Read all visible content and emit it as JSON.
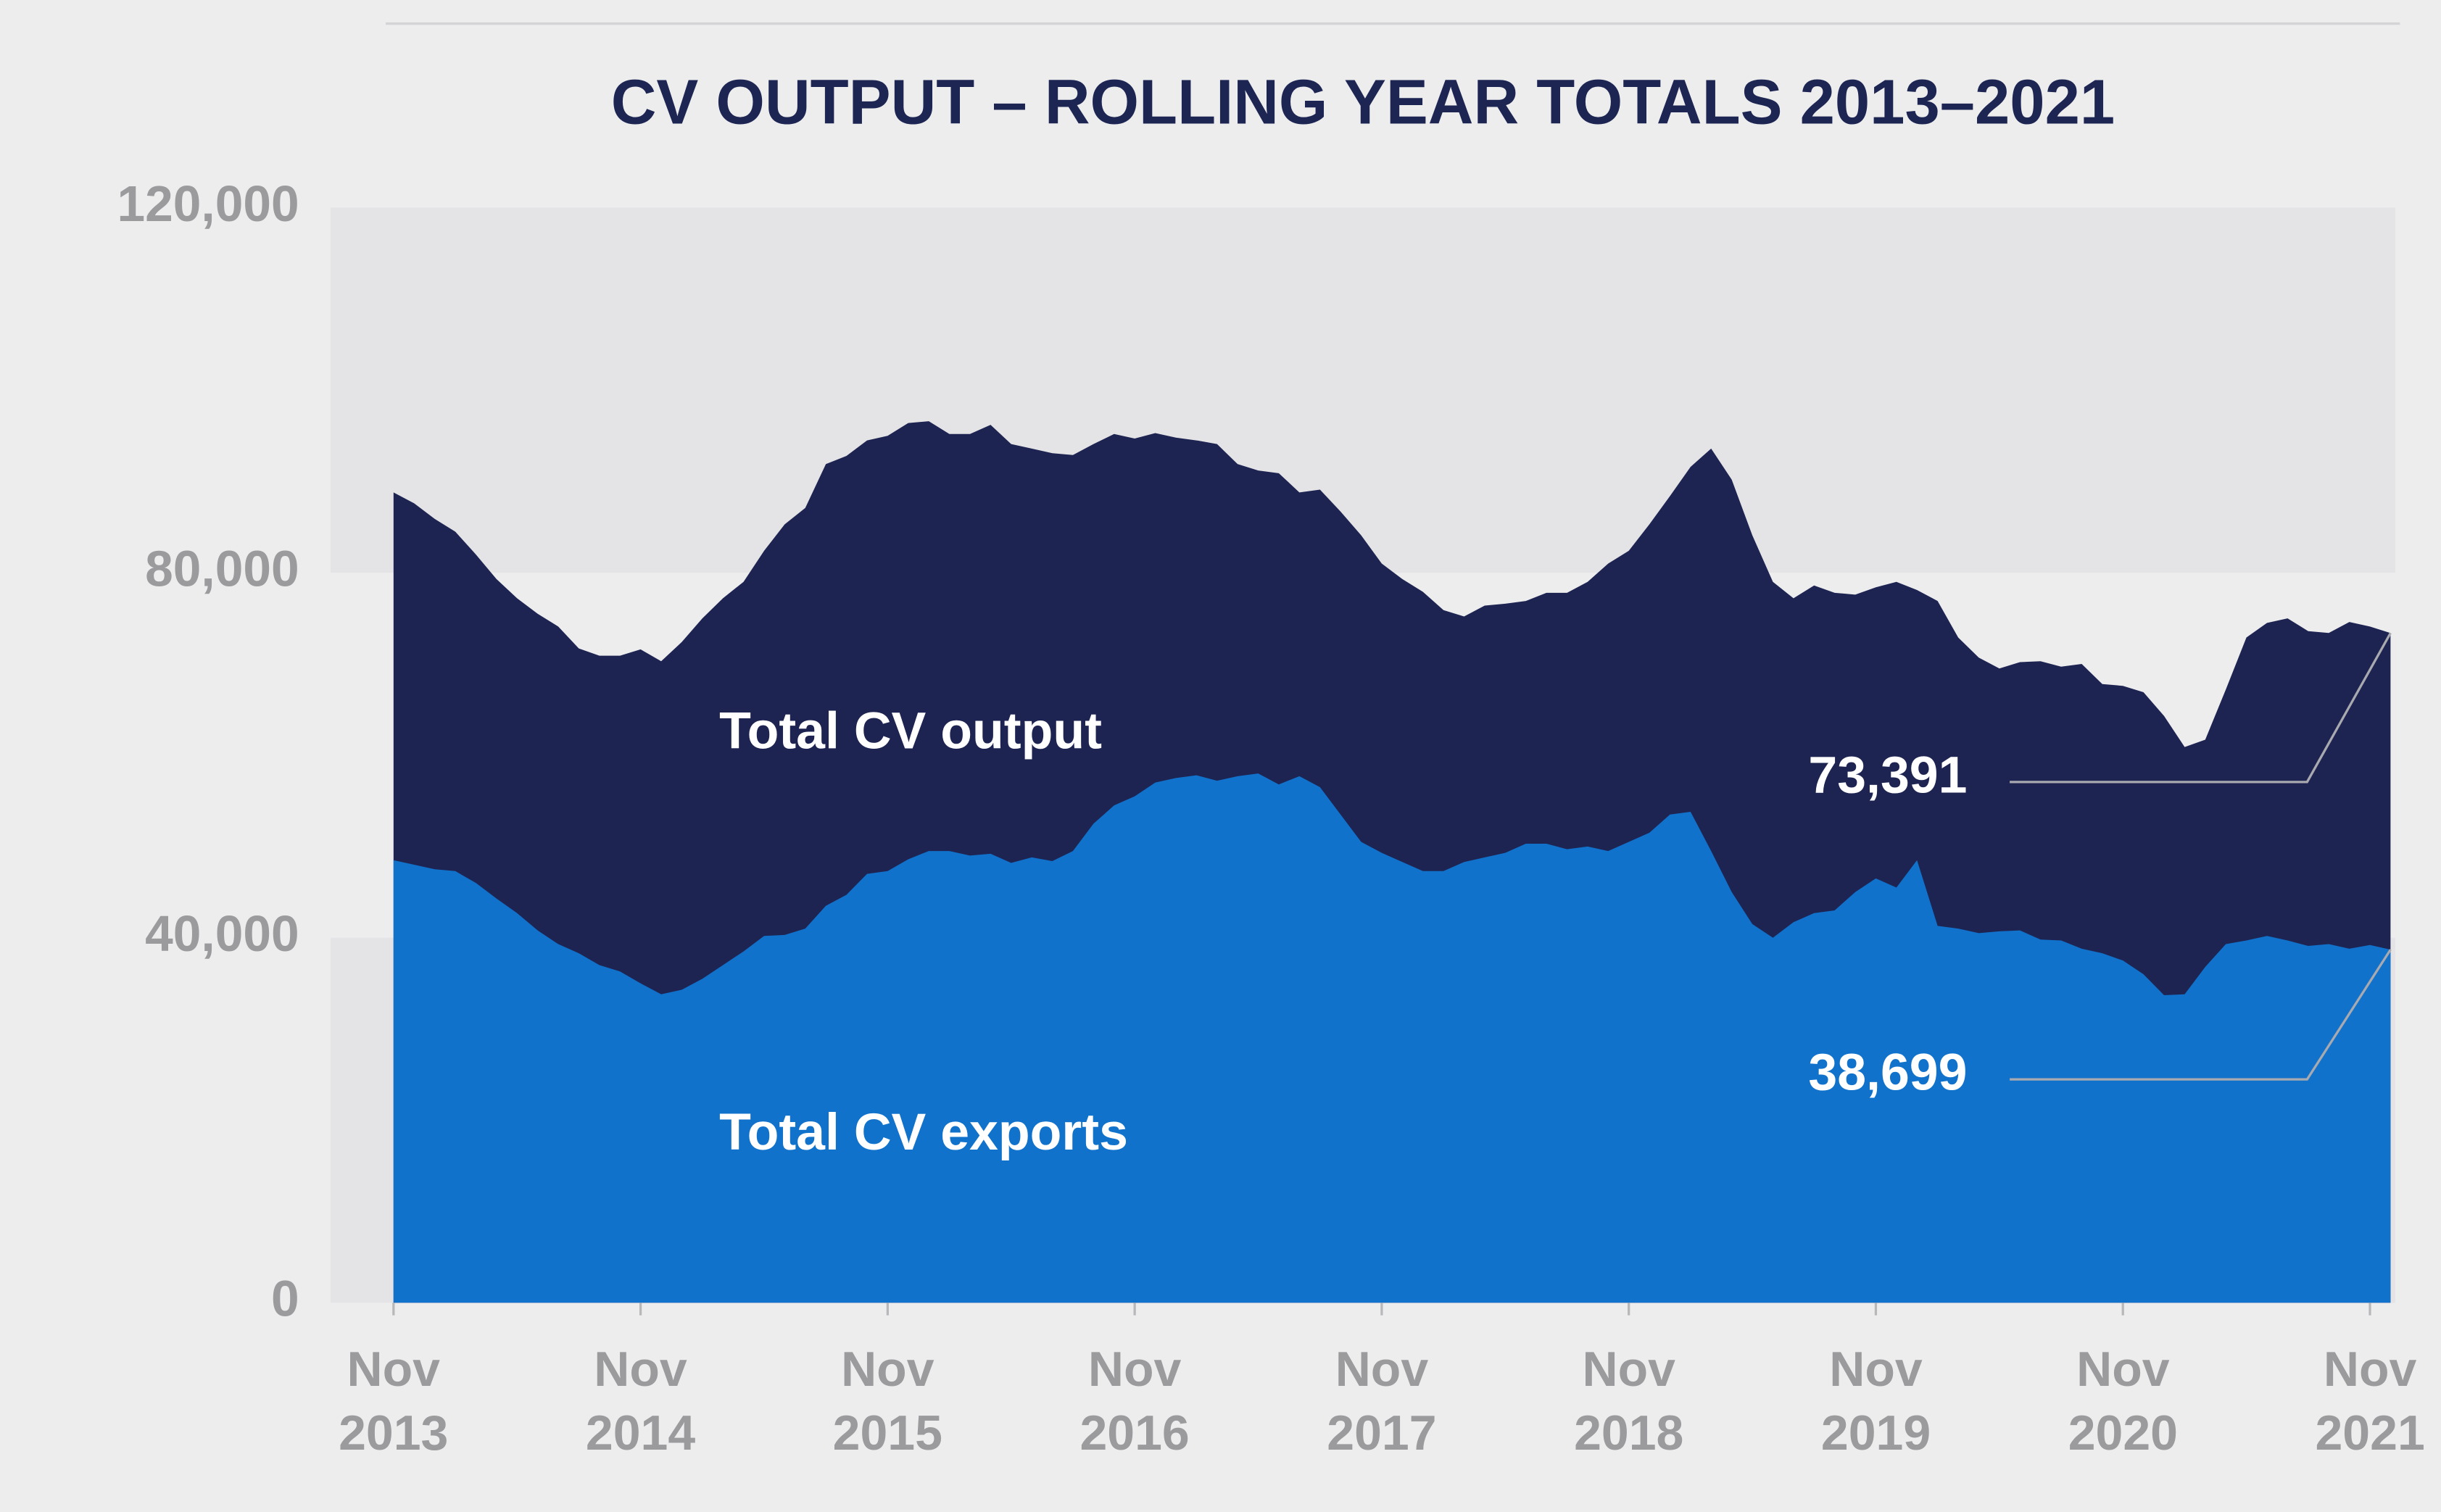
{
  "chart_data": {
    "type": "area",
    "title": "CV OUTPUT – ROLLING YEAR TOTALS 2013–2021",
    "categories": [
      "Nov 2013",
      null,
      null,
      null,
      null,
      null,
      null,
      null,
      null,
      null,
      null,
      null,
      "Nov 2014",
      null,
      null,
      null,
      null,
      null,
      null,
      null,
      null,
      null,
      null,
      null,
      "Nov 2015",
      null,
      null,
      null,
      null,
      null,
      null,
      null,
      null,
      null,
      null,
      null,
      "Nov 2016",
      null,
      null,
      null,
      null,
      null,
      null,
      null,
      null,
      null,
      null,
      null,
      "Nov 2017",
      null,
      null,
      null,
      null,
      null,
      null,
      null,
      null,
      null,
      null,
      null,
      "Nov 2018",
      null,
      null,
      null,
      null,
      null,
      null,
      null,
      null,
      null,
      null,
      null,
      "Nov 2019",
      null,
      null,
      null,
      null,
      null,
      null,
      null,
      null,
      null,
      null,
      null,
      "Nov 2020",
      null,
      null,
      null,
      null,
      null,
      null,
      null,
      null,
      null,
      null,
      null,
      "Nov 2021",
      null
    ],
    "series": [
      {
        "name": "Total CV output",
        "color": "#1e2452",
        "end_label": "73,391",
        "values": [
          88800,
          87600,
          85900,
          84500,
          82000,
          79300,
          77200,
          75500,
          74100,
          71700,
          70900,
          70900,
          71600,
          70300,
          72400,
          75000,
          77200,
          79000,
          82400,
          85300,
          87100,
          91900,
          92800,
          94500,
          95000,
          96400,
          96600,
          95200,
          95200,
          96200,
          94100,
          93600,
          93100,
          92900,
          94100,
          95200,
          94700,
          95300,
          94800,
          94500,
          94100,
          91900,
          91200,
          90900,
          88800,
          89100,
          86700,
          84100,
          81000,
          79300,
          77900,
          75900,
          75200,
          76400,
          76600,
          76900,
          77800,
          77800,
          79000,
          81000,
          82400,
          85300,
          88400,
          91600,
          93600,
          90200,
          84100,
          79000,
          77200,
          78600,
          77800,
          77600,
          78400,
          79000,
          78100,
          76900,
          72900,
          70700,
          69500,
          70200,
          70300,
          69700,
          70000,
          67800,
          67600,
          66900,
          64300,
          60900,
          61700,
          67200,
          72900,
          74500,
          75000,
          73600,
          73400,
          74600,
          74100,
          73391
        ]
      },
      {
        "name": "Total CV exports",
        "color": "#1172cc",
        "end_label": "38,699",
        "values": [
          48500,
          48000,
          47500,
          47300,
          46000,
          44300,
          42700,
          40800,
          39300,
          38300,
          37000,
          36300,
          35000,
          33800,
          34300,
          35500,
          37000,
          38500,
          40200,
          40300,
          41000,
          43500,
          44700,
          47000,
          47300,
          48600,
          49500,
          49500,
          49000,
          49200,
          48200,
          48800,
          48400,
          49500,
          52500,
          54500,
          55500,
          57000,
          57500,
          57800,
          57200,
          57700,
          58000,
          56800,
          57700,
          56500,
          53500,
          50500,
          49300,
          48300,
          47300,
          47300,
          48300,
          48800,
          49300,
          50300,
          50300,
          49700,
          50000,
          49500,
          50500,
          51500,
          53500,
          53800,
          49500,
          45000,
          41500,
          40000,
          41700,
          42700,
          43000,
          45000,
          46500,
          45500,
          48500,
          41300,
          41000,
          40500,
          40700,
          40800,
          39800,
          39700,
          38800,
          38300,
          37500,
          36000,
          33700,
          33800,
          36800,
          39300,
          39700,
          40200,
          39700,
          39100,
          39300,
          38800,
          39200,
          38699
        ]
      }
    ],
    "ylim": [
      0,
      120000
    ],
    "yticks": [
      0,
      {
        "value": 40000,
        "label": "40,000"
      },
      {
        "value": 80000,
        "label": "80,000"
      },
      {
        "value": 120000,
        "label": "120,000"
      }
    ],
    "bands": true
  }
}
